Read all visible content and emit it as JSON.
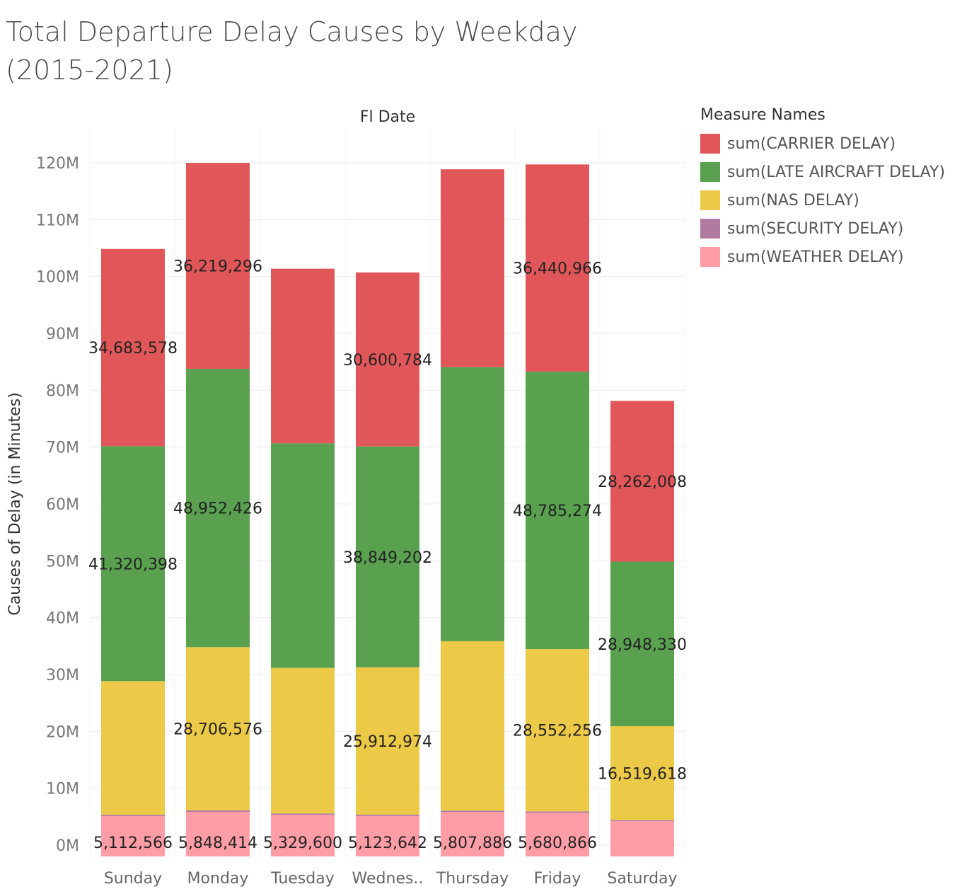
{
  "chart_data": {
    "type": "bar",
    "stacked": true,
    "title": "Total Departure Delay Causes by Weekday\n(2015-2021)",
    "header": "Fl Date",
    "ylabel": "Causes of Delay (in Minutes)",
    "ylim": [
      0,
      120000000
    ],
    "yticks": [
      "0M",
      "10M",
      "20M",
      "30M",
      "40M",
      "50M",
      "60M",
      "70M",
      "80M",
      "90M",
      "100M",
      "110M",
      "120M"
    ],
    "categories": [
      "Sunday",
      "Monday",
      "Tuesday",
      "Wednes..",
      "Thursday",
      "Friday",
      "Saturday"
    ],
    "legend_title": "Measure Names",
    "legend_position": "right",
    "grid": true,
    "series": [
      {
        "name": "sum(WEATHER DELAY)",
        "color": "#ff9da7",
        "values": [
          5112566,
          5848414,
          5329600,
          5123642,
          5807886,
          5680866,
          4200000
        ]
      },
      {
        "name": "sum(SECURITY DELAY)",
        "color": "#b07aa1",
        "values": [
          230000,
          260000,
          240000,
          230000,
          250000,
          250000,
          190000
        ]
      },
      {
        "name": "sum(NAS DELAY)",
        "color": "#edc948",
        "values": [
          23500000,
          28706576,
          25600000,
          25912974,
          29800000,
          28552256,
          16519618
        ]
      },
      {
        "name": "sum(LATE AIRCRAFT DELAY)",
        "color": "#59a14f",
        "values": [
          41320398,
          48952426,
          39500000,
          38849202,
          48200000,
          48785274,
          28948330
        ]
      },
      {
        "name": "sum(CARRIER DELAY)",
        "color": "#e15759",
        "values": [
          34683578,
          36219296,
          30700000,
          30600784,
          34800000,
          36440966,
          28262008
        ]
      }
    ],
    "data_labels": {
      "sum(WEATHER DELAY)": [
        "5,112,566",
        "5,848,414",
        "5,329,600",
        "5,123,642",
        "5,807,886",
        "5,680,866",
        ""
      ],
      "sum(SECURITY DELAY)": [
        "",
        "",
        "",
        "",
        "",
        "",
        ""
      ],
      "sum(NAS DELAY)": [
        "",
        "28,706,576",
        "",
        "25,912,974",
        "",
        "28,552,256",
        "16,519,618"
      ],
      "sum(LATE AIRCRAFT DELAY)": [
        "41,320,398",
        "48,952,426",
        "",
        "38,849,202",
        "",
        "48,785,274",
        "28,948,330"
      ],
      "sum(CARRIER DELAY)": [
        "34,683,578",
        "36,219,296",
        "",
        "30,600,784",
        "",
        "36,440,966",
        "28,262,008"
      ]
    }
  },
  "legend_order": [
    "sum(CARRIER DELAY)",
    "sum(LATE AIRCRAFT DELAY)",
    "sum(NAS DELAY)",
    "sum(SECURITY DELAY)",
    "sum(WEATHER DELAY)"
  ]
}
